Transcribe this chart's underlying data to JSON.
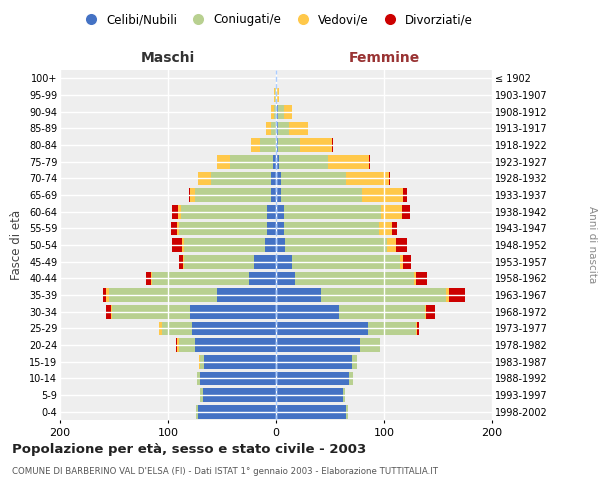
{
  "age_groups": [
    "0-4",
    "5-9",
    "10-14",
    "15-19",
    "20-24",
    "25-29",
    "30-34",
    "35-39",
    "40-44",
    "45-49",
    "50-54",
    "55-59",
    "60-64",
    "65-69",
    "70-74",
    "75-79",
    "80-84",
    "85-89",
    "90-94",
    "95-99",
    "100+"
  ],
  "birth_years": [
    "1998-2002",
    "1993-1997",
    "1988-1992",
    "1983-1987",
    "1978-1982",
    "1973-1977",
    "1968-1972",
    "1963-1967",
    "1958-1962",
    "1953-1957",
    "1948-1952",
    "1943-1947",
    "1938-1942",
    "1933-1937",
    "1928-1932",
    "1923-1927",
    "1918-1922",
    "1913-1917",
    "1908-1912",
    "1903-1907",
    "≤ 1902"
  ],
  "males": {
    "celibi": [
      72,
      68,
      70,
      67,
      75,
      78,
      80,
      55,
      25,
      20,
      10,
      8,
      8,
      5,
      5,
      3,
      0,
      0,
      0,
      0,
      0
    ],
    "coniugati": [
      2,
      2,
      3,
      3,
      15,
      28,
      72,
      100,
      90,
      65,
      75,
      82,
      80,
      70,
      55,
      40,
      15,
      5,
      2,
      1,
      0
    ],
    "vedovi": [
      0,
      0,
      0,
      1,
      2,
      2,
      1,
      2,
      1,
      1,
      2,
      2,
      3,
      5,
      12,
      12,
      8,
      4,
      3,
      1,
      0
    ],
    "divorziati": [
      0,
      0,
      0,
      0,
      1,
      0,
      4,
      3,
      4,
      4,
      9,
      5,
      5,
      1,
      0,
      0,
      0,
      0,
      0,
      0,
      0
    ]
  },
  "females": {
    "nubili": [
      65,
      62,
      68,
      70,
      78,
      85,
      58,
      42,
      18,
      15,
      8,
      7,
      7,
      5,
      5,
      3,
      2,
      2,
      2,
      0,
      0
    ],
    "coniugate": [
      2,
      2,
      3,
      5,
      18,
      45,
      80,
      115,
      110,
      100,
      95,
      88,
      90,
      75,
      60,
      45,
      20,
      10,
      5,
      1,
      0
    ],
    "vedove": [
      0,
      0,
      0,
      0,
      0,
      1,
      1,
      3,
      2,
      3,
      8,
      12,
      20,
      38,
      40,
      38,
      30,
      18,
      8,
      2,
      0
    ],
    "divorziate": [
      0,
      0,
      0,
      0,
      0,
      1,
      8,
      15,
      10,
      7,
      10,
      5,
      7,
      3,
      1,
      1,
      1,
      0,
      0,
      0,
      0
    ]
  },
  "colors": {
    "celibi_nubili": "#4472c4",
    "coniugati_e": "#b8d090",
    "vedovi_e": "#ffc84a",
    "divorziati_e": "#cc0000"
  },
  "title": "Popolazione per età, sesso e stato civile - 2003",
  "subtitle": "COMUNE DI BARBERINO VAL D'ELSA (FI) - Dati ISTAT 1° gennaio 2003 - Elaborazione TUTTITALIA.IT",
  "xlabel_left": "Maschi",
  "xlabel_right": "Femmine",
  "ylabel_left": "Fasce di età",
  "ylabel_right": "Anni di nascita",
  "xlim": 200,
  "bg_color": "#ffffff",
  "plot_bg": "#eeeeee",
  "grid_color": "#ffffff",
  "legend_labels": [
    "Celibi/Nubili",
    "Coniugati/e",
    "Vedovi/e",
    "Divorziati/e"
  ]
}
